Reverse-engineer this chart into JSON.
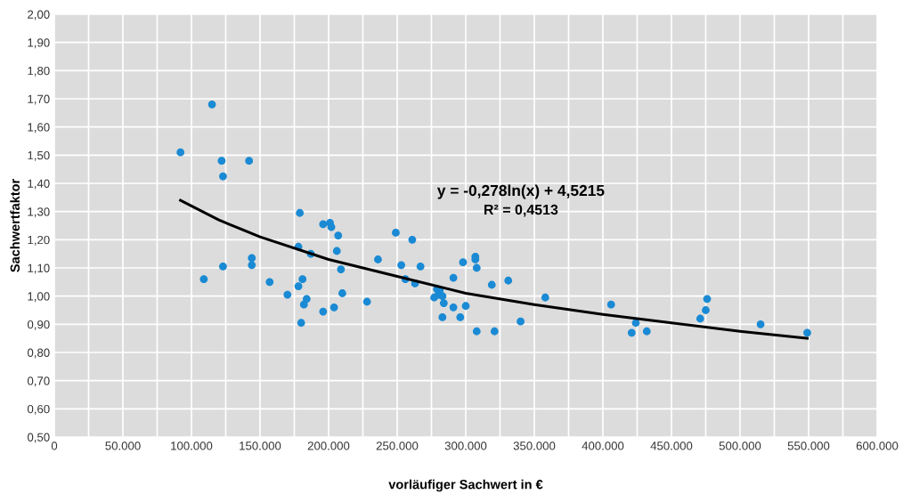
{
  "chart_data": {
    "type": "scatter",
    "xlabel": "vorläufiger Sachwert in €",
    "ylabel": "Sachwertfaktor",
    "xlim": [
      0,
      600000
    ],
    "ylim": [
      0.5,
      2.0
    ],
    "xticks": [
      {
        "value": 0,
        "label": "0"
      },
      {
        "value": 25000,
        "label": null
      },
      {
        "value": 50000,
        "label": "50.000"
      },
      {
        "value": 75000,
        "label": null
      },
      {
        "value": 100000,
        "label": "100.000"
      },
      {
        "value": 125000,
        "label": null
      },
      {
        "value": 150000,
        "label": "150.000"
      },
      {
        "value": 175000,
        "label": null
      },
      {
        "value": 200000,
        "label": "200.000"
      },
      {
        "value": 225000,
        "label": null
      },
      {
        "value": 250000,
        "label": "250.000"
      },
      {
        "value": 275000,
        "label": null
      },
      {
        "value": 300000,
        "label": "300.000"
      },
      {
        "value": 325000,
        "label": null
      },
      {
        "value": 350000,
        "label": "350.000"
      },
      {
        "value": 375000,
        "label": null
      },
      {
        "value": 400000,
        "label": "400.000"
      },
      {
        "value": 425000,
        "label": null
      },
      {
        "value": 450000,
        "label": "450.000"
      },
      {
        "value": 475000,
        "label": null
      },
      {
        "value": 500000,
        "label": "500.000"
      },
      {
        "value": 525000,
        "label": null
      },
      {
        "value": 550000,
        "label": "550.000"
      },
      {
        "value": 575000,
        "label": null
      },
      {
        "value": 600000,
        "label": "600.000"
      }
    ],
    "yticks": [
      {
        "value": 0.5,
        "label": "0,50"
      },
      {
        "value": 0.6,
        "label": "0,60"
      },
      {
        "value": 0.7,
        "label": "0,70"
      },
      {
        "value": 0.8,
        "label": "0,80"
      },
      {
        "value": 0.9,
        "label": "0,90"
      },
      {
        "value": 1.0,
        "label": "1,00"
      },
      {
        "value": 1.1,
        "label": "1,10"
      },
      {
        "value": 1.2,
        "label": "1,20"
      },
      {
        "value": 1.3,
        "label": "1,30"
      },
      {
        "value": 1.4,
        "label": "1,40"
      },
      {
        "value": 1.5,
        "label": "1,50"
      },
      {
        "value": 1.6,
        "label": "1,60"
      },
      {
        "value": 1.7,
        "label": "1,70"
      },
      {
        "value": 1.8,
        "label": "1,80"
      },
      {
        "value": 1.9,
        "label": "1,90"
      },
      {
        "value": 2.0,
        "label": "2,00"
      }
    ],
    "grid": true,
    "annotations": [
      "y = -0,278ln(x) + 4,5215",
      "R² = 0,4513"
    ],
    "series": [
      {
        "color": "#1a8ad4",
        "marker": "circle",
        "x": [
          92000,
          109000,
          115000,
          122000,
          123000,
          123000,
          142000,
          144000,
          144000,
          157000,
          170000,
          178000,
          179000,
          178000,
          181000,
          180000,
          182000,
          184000,
          187000,
          196000,
          196000,
          201000,
          202000,
          204000,
          206000,
          207000,
          209000,
          210000,
          228000,
          236000,
          249000,
          253000,
          256000,
          261000,
          263000,
          267000,
          277000,
          279000,
          280000,
          281000,
          283000,
          283000,
          284000,
          291000,
          291000,
          296000,
          298000,
          300000,
          307000,
          307000,
          308000,
          308000,
          319000,
          321000,
          331000,
          340000,
          358000,
          406000,
          421000,
          424000,
          432000,
          471000,
          475000,
          476000,
          515000,
          549000
        ],
        "values": [
          1.51,
          1.06,
          1.68,
          1.48,
          1.425,
          1.105,
          1.48,
          1.135,
          1.11,
          1.05,
          1.005,
          1.175,
          1.295,
          1.035,
          1.06,
          0.905,
          0.97,
          0.99,
          1.15,
          1.255,
          0.945,
          1.26,
          1.245,
          0.96,
          1.16,
          1.215,
          1.095,
          1.01,
          0.98,
          1.13,
          1.225,
          1.11,
          1.06,
          1.2,
          1.045,
          1.105,
          0.995,
          1.025,
          1.005,
          1.02,
          0.925,
          1.0,
          0.975,
          1.065,
          0.96,
          0.925,
          1.12,
          0.965,
          1.14,
          1.13,
          1.1,
          0.875,
          1.04,
          0.875,
          1.055,
          0.91,
          0.995,
          0.97,
          0.87,
          0.905,
          0.875,
          0.92,
          0.95,
          0.99,
          0.9,
          0.87
        ]
      },
      {
        "type": "line",
        "color": "#000000",
        "x": [
          92000,
          120000,
          150000,
          200000,
          250000,
          300000,
          350000,
          400000,
          450000,
          500000,
          549000
        ],
        "values": [
          1.34,
          1.27,
          1.21,
          1.13,
          1.07,
          1.01,
          0.97,
          0.935,
          0.905,
          0.875,
          0.85
        ]
      }
    ]
  }
}
